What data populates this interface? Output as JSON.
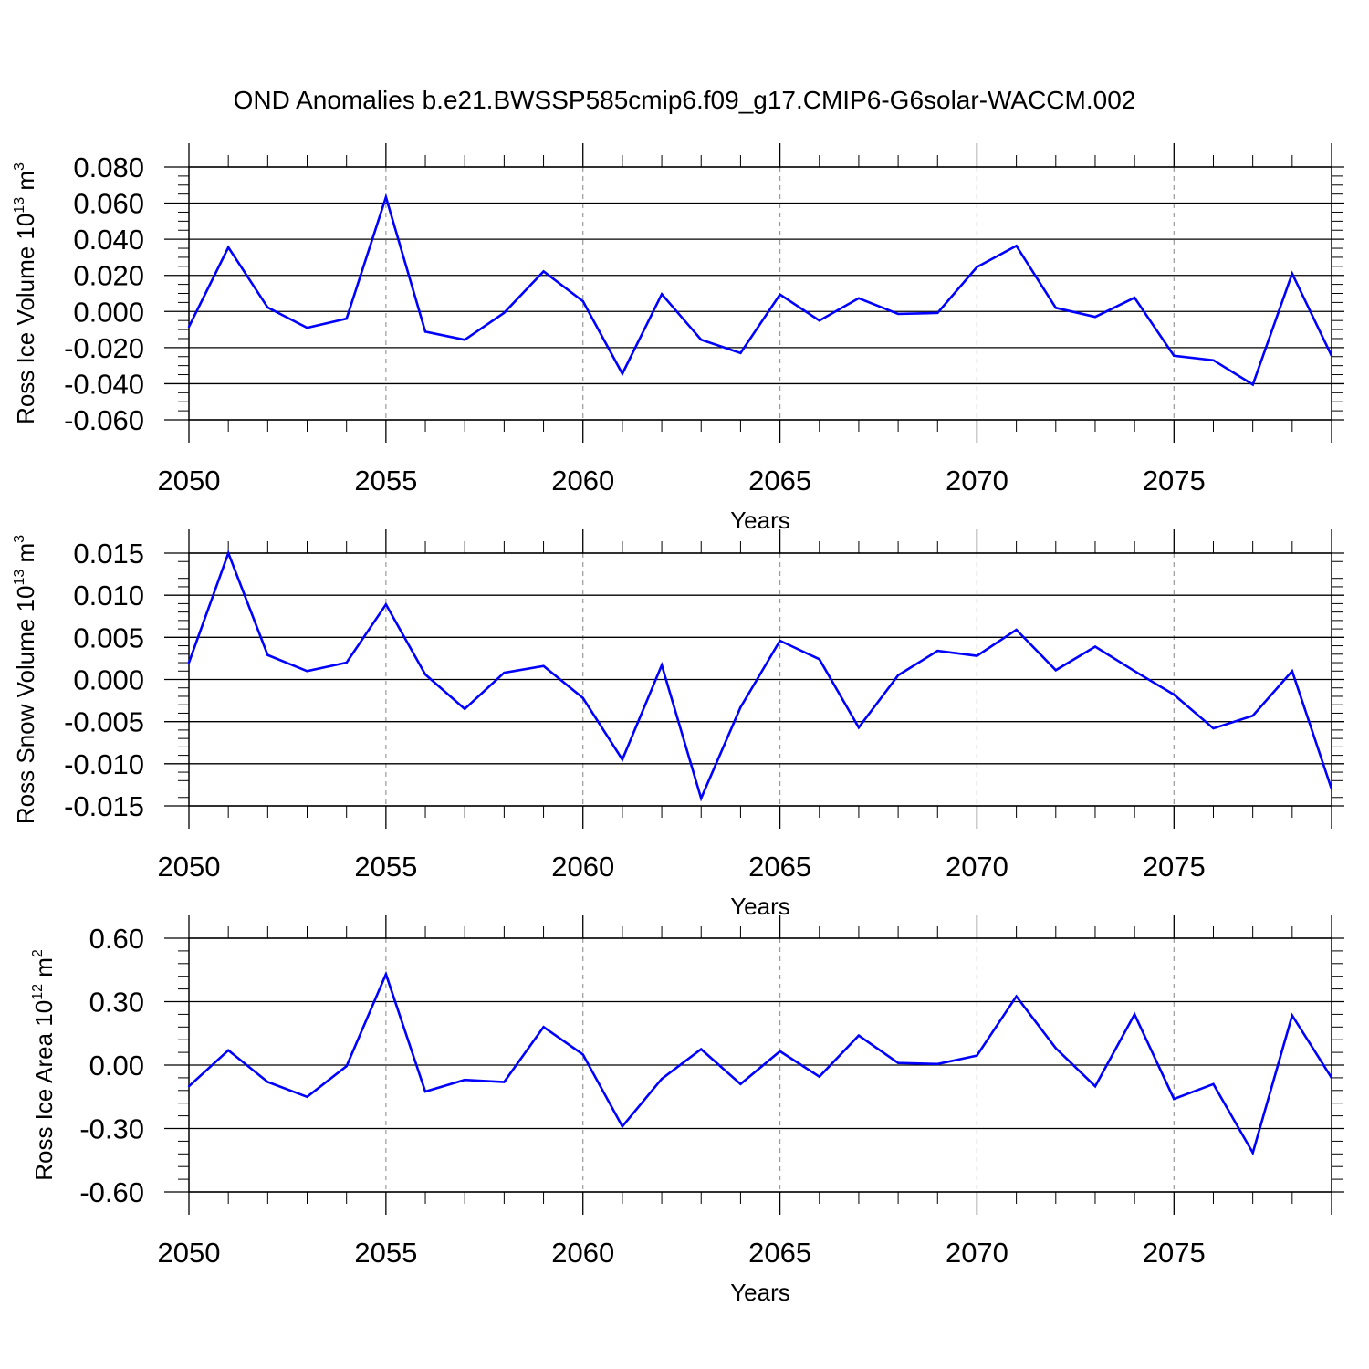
{
  "figure": {
    "title": "OND Anomalies b.e21.BWSSP585cmip6.f09_g17.CMIP6-G6solar-WACCM.002"
  },
  "colors": {
    "series": "#0000ff",
    "axis": "#000000",
    "grid": "#999999"
  },
  "chart_data": [
    {
      "type": "line",
      "title": "OND Anomalies b.e21.BWSSP585cmip6.f09_g17.CMIP6-G6solar-WACCM.002",
      "xlabel": "Years",
      "ylabel_main": "Ross Ice Volume 10",
      "ylabel_exp": "13",
      "ylabel_unit": " m",
      "ylabel_unit_exp": "3",
      "xlim": [
        2050,
        2079
      ],
      "ylim": [
        -0.06,
        0.08
      ],
      "x_ticks": [
        2050,
        2055,
        2060,
        2065,
        2070,
        2075
      ],
      "x_tick_labels": [
        "2050",
        "2055",
        "2060",
        "2065",
        "2070",
        "2075"
      ],
      "y_ticks": [
        -0.06,
        -0.04,
        -0.02,
        0.0,
        0.02,
        0.04,
        0.06,
        0.08
      ],
      "y_tick_labels": [
        "-0.060",
        "-0.040",
        "-0.020",
        "0.000",
        "0.020",
        "0.040",
        "0.060",
        "0.080"
      ],
      "y_minor_step": 0.005,
      "grid_x": true,
      "x": [
        2050,
        2051,
        2052,
        2053,
        2054,
        2055,
        2056,
        2057,
        2058,
        2059,
        2060,
        2061,
        2062,
        2063,
        2064,
        2065,
        2066,
        2067,
        2068,
        2069,
        2070,
        2071,
        2072,
        2073,
        2074,
        2075,
        2076,
        2077,
        2078,
        2079
      ],
      "series": [
        {
          "name": "Ross Ice Volume",
          "values": [
            -0.0085,
            0.0355,
            0.0022,
            -0.009,
            -0.004,
            0.0633,
            -0.0112,
            -0.0157,
            -0.0007,
            0.0222,
            0.0057,
            -0.0345,
            0.0096,
            -0.0156,
            -0.023,
            0.0094,
            -0.005,
            0.0073,
            -0.0013,
            -0.0008,
            0.0246,
            0.0364,
            0.002,
            -0.003,
            0.0076,
            -0.0245,
            -0.027,
            -0.0405,
            0.021,
            -0.0245
          ]
        }
      ]
    },
    {
      "type": "line",
      "xlabel": "Years",
      "ylabel_main": "Ross Snow Volume 10",
      "ylabel_exp": "13",
      "ylabel_unit": " m",
      "ylabel_unit_exp": "3",
      "xlim": [
        2050,
        2079
      ],
      "ylim": [
        -0.015,
        0.015
      ],
      "x_ticks": [
        2050,
        2055,
        2060,
        2065,
        2070,
        2075
      ],
      "x_tick_labels": [
        "2050",
        "2055",
        "2060",
        "2065",
        "2070",
        "2075"
      ],
      "y_ticks": [
        -0.015,
        -0.01,
        -0.005,
        0.0,
        0.005,
        0.01,
        0.015
      ],
      "y_tick_labels": [
        "-0.015",
        "-0.010",
        "-0.005",
        "0.000",
        "0.005",
        "0.010",
        "0.015"
      ],
      "y_minor_step": 0.001,
      "grid_x": true,
      "x": [
        2050,
        2051,
        2052,
        2053,
        2054,
        2055,
        2056,
        2057,
        2058,
        2059,
        2060,
        2061,
        2062,
        2063,
        2064,
        2065,
        2066,
        2067,
        2068,
        2069,
        2070,
        2071,
        2072,
        2073,
        2074,
        2075,
        2076,
        2077,
        2078,
        2079
      ],
      "series": [
        {
          "name": "Ross Snow Volume",
          "values": [
            0.002,
            0.015,
            0.0029,
            0.001,
            0.002,
            0.0089,
            0.0006,
            -0.0035,
            0.0008,
            0.0016,
            -0.0022,
            -0.0095,
            0.0017,
            -0.0141,
            -0.0033,
            0.0046,
            0.0024,
            -0.0057,
            0.0005,
            0.0034,
            0.0028,
            0.0059,
            0.0011,
            0.0039,
            0.001,
            -0.0018,
            -0.0058,
            -0.0043,
            0.001,
            -0.013
          ]
        }
      ]
    },
    {
      "type": "line",
      "xlabel": "Years",
      "ylabel_main": "Ross Ice Area 10",
      "ylabel_exp": "12",
      "ylabel_unit": " m",
      "ylabel_unit_exp": "2",
      "xlim": [
        2050,
        2079
      ],
      "ylim": [
        -0.6,
        0.6
      ],
      "x_ticks": [
        2050,
        2055,
        2060,
        2065,
        2070,
        2075
      ],
      "x_tick_labels": [
        "2050",
        "2055",
        "2060",
        "2065",
        "2070",
        "2075"
      ],
      "y_ticks": [
        -0.6,
        -0.3,
        0.0,
        0.3,
        0.6
      ],
      "y_tick_labels": [
        "-0.60",
        "-0.30",
        "0.00",
        "0.30",
        "0.60"
      ],
      "y_minor_step": 0.06,
      "grid_x": true,
      "x": [
        2050,
        2051,
        2052,
        2053,
        2054,
        2055,
        2056,
        2057,
        2058,
        2059,
        2060,
        2061,
        2062,
        2063,
        2064,
        2065,
        2066,
        2067,
        2068,
        2069,
        2070,
        2071,
        2072,
        2073,
        2074,
        2075,
        2076,
        2077,
        2078,
        2079
      ],
      "series": [
        {
          "name": "Ross Ice Area",
          "values": [
            -0.1,
            0.07,
            -0.08,
            -0.15,
            -0.005,
            0.43,
            -0.125,
            -0.07,
            -0.08,
            0.18,
            0.05,
            -0.29,
            -0.065,
            0.075,
            -0.09,
            0.065,
            -0.055,
            0.14,
            0.01,
            0.005,
            0.045,
            0.325,
            0.08,
            -0.1,
            0.24,
            -0.16,
            -0.09,
            -0.415,
            0.235,
            -0.06
          ]
        }
      ]
    }
  ]
}
